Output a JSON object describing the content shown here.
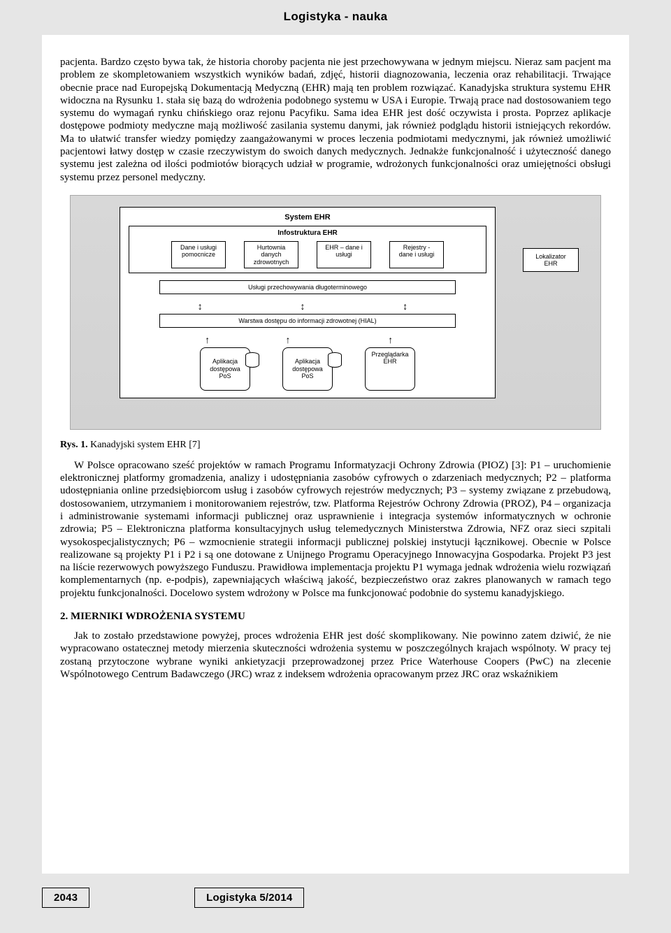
{
  "journal_header": "Logistyka - nauka",
  "paragraph_1": "pacjenta. Bardzo często bywa tak, że historia choroby pacjenta nie jest przechowywana w jednym miejscu. Nieraz sam pacjent ma problem ze skompletowaniem wszystkich wyników badań, zdjęć, historii diagnozowania, leczenia oraz rehabilitacji. Trwające obecnie prace nad Europejską Dokumentacją Medyczną (EHR) mają ten problem rozwiązać. Kanadyjska struktura systemu EHR widoczna na Rysunku 1. stała się bazą do wdrożenia podobnego systemu w USA i Europie. Trwają prace nad dostosowaniem tego systemu do wymagań rynku chińskiego oraz rejonu Pacyfiku. Sama idea EHR jest dość oczywista i prosta. Poprzez aplikacje dostępowe podmioty medyczne mają możliwość zasilania systemu danymi, jak również podglądu historii istniejących rekordów. Ma to ułatwić transfer wiedzy pomiędzy zaangażowanymi w proces leczenia podmiotami medycznymi, jak również umożliwić pacjentowi łatwy dostęp w czasie rzeczywistym do swoich danych medycznych. Jednakże funkcjonalność i użyteczność danego systemu jest zależna od ilości podmiotów biorących udział w programie, wdrożonych funkcjonalności oraz umiejętności obsługi systemu przez personel medyczny.",
  "figure": {
    "system_title": "System EHR",
    "infra_title": "Infostruktura EHR",
    "top_cells": [
      "Dane i usługi\npomocnicze",
      "Hurtownia\ndanych\nzdrowotnych",
      "EHR – dane i\nusługi",
      "Rejestry -\ndane i usługi"
    ],
    "bar1": "Usługi przechowywania długoterminowego",
    "bar2": "Warstwa dostępu do informacji zdrowotnej (HIAL)",
    "bottom_cells": [
      "Aplikacja\ndostępowa\nPoS",
      "Aplikacja\ndostępowa\nPoS",
      "Przeglądarka\nEHR"
    ],
    "lokalizator": "Lokalizator\nEHR"
  },
  "caption_label": "Rys. 1.",
  "caption_text": " Kanadyjski system EHR [7]",
  "paragraph_2": "W Polsce opracowano sześć projektów w ramach Programu Informatyzacji Ochrony Zdrowia (PIOZ) [3]: P1 – uruchomienie elektronicznej platformy gromadzenia, analizy i udostępniania zasobów cyfrowych o zdarzeniach medycznych; P2 – platforma udostępniania online przedsiębiorcom usług i zasobów cyfrowych rejestrów medycznych; P3 – systemy związane z przebudową, dostosowaniem, utrzymaniem i monitorowaniem rejestrów, tzw. Platforma Rejestrów Ochrony Zdrowia (PROZ), P4 – organizacja i administrowanie systemami informacji publicznej oraz usprawnienie i integracja systemów informatycznych w ochronie zdrowia; P5 – Elektroniczna platforma konsultacyjnych usług telemedycznych Ministerstwa Zdrowia, NFZ oraz sieci szpitali wysokospecjalistycznych; P6 – wzmocnienie strategii informacji publicznej polskiej instytucji łącznikowej. Obecnie w Polsce realizowane są projekty P1 i P2 i są one dotowane z Unijnego Programu Operacyjnego Innowacyjna Gospodarka. Projekt P3 jest na liście rezerwowych powyższego Funduszu. Prawidłowa implementacja projektu P1 wymaga jednak wdrożenia wielu rozwiązań komplementarnych (np. e-podpis), zapewniających właściwą jakość, bezpieczeństwo oraz zakres planowanych w ramach tego projektu funkcjonalności. Docelowo system wdrożony w Polsce ma funkcjonować podobnie do systemu kanadyjskiego.",
  "section_2_head": "2.  MIERNIKI WDROŻENIA SYSTEMU",
  "paragraph_3": "Jak to zostało przedstawione powyżej, proces wdrożenia EHR jest dość skomplikowany. Nie powinno zatem dziwić, że nie wypracowano ostatecznej metody mierzenia skuteczności wdrożenia systemu w poszczególnych krajach wspólnoty. W pracy tej zostaną przytoczone wybrane wyniki ankietyzacji przeprowadzonej przez Price Waterhouse Coopers (PwC) na zlecenie Wspólnotowego Centrum Badawczego (JRC) wraz z indeksem wdrożenia opracowanym przez JRC oraz wskaźnikiem",
  "footer_page": "2043",
  "footer_issue": "Logistyka 5/2014"
}
